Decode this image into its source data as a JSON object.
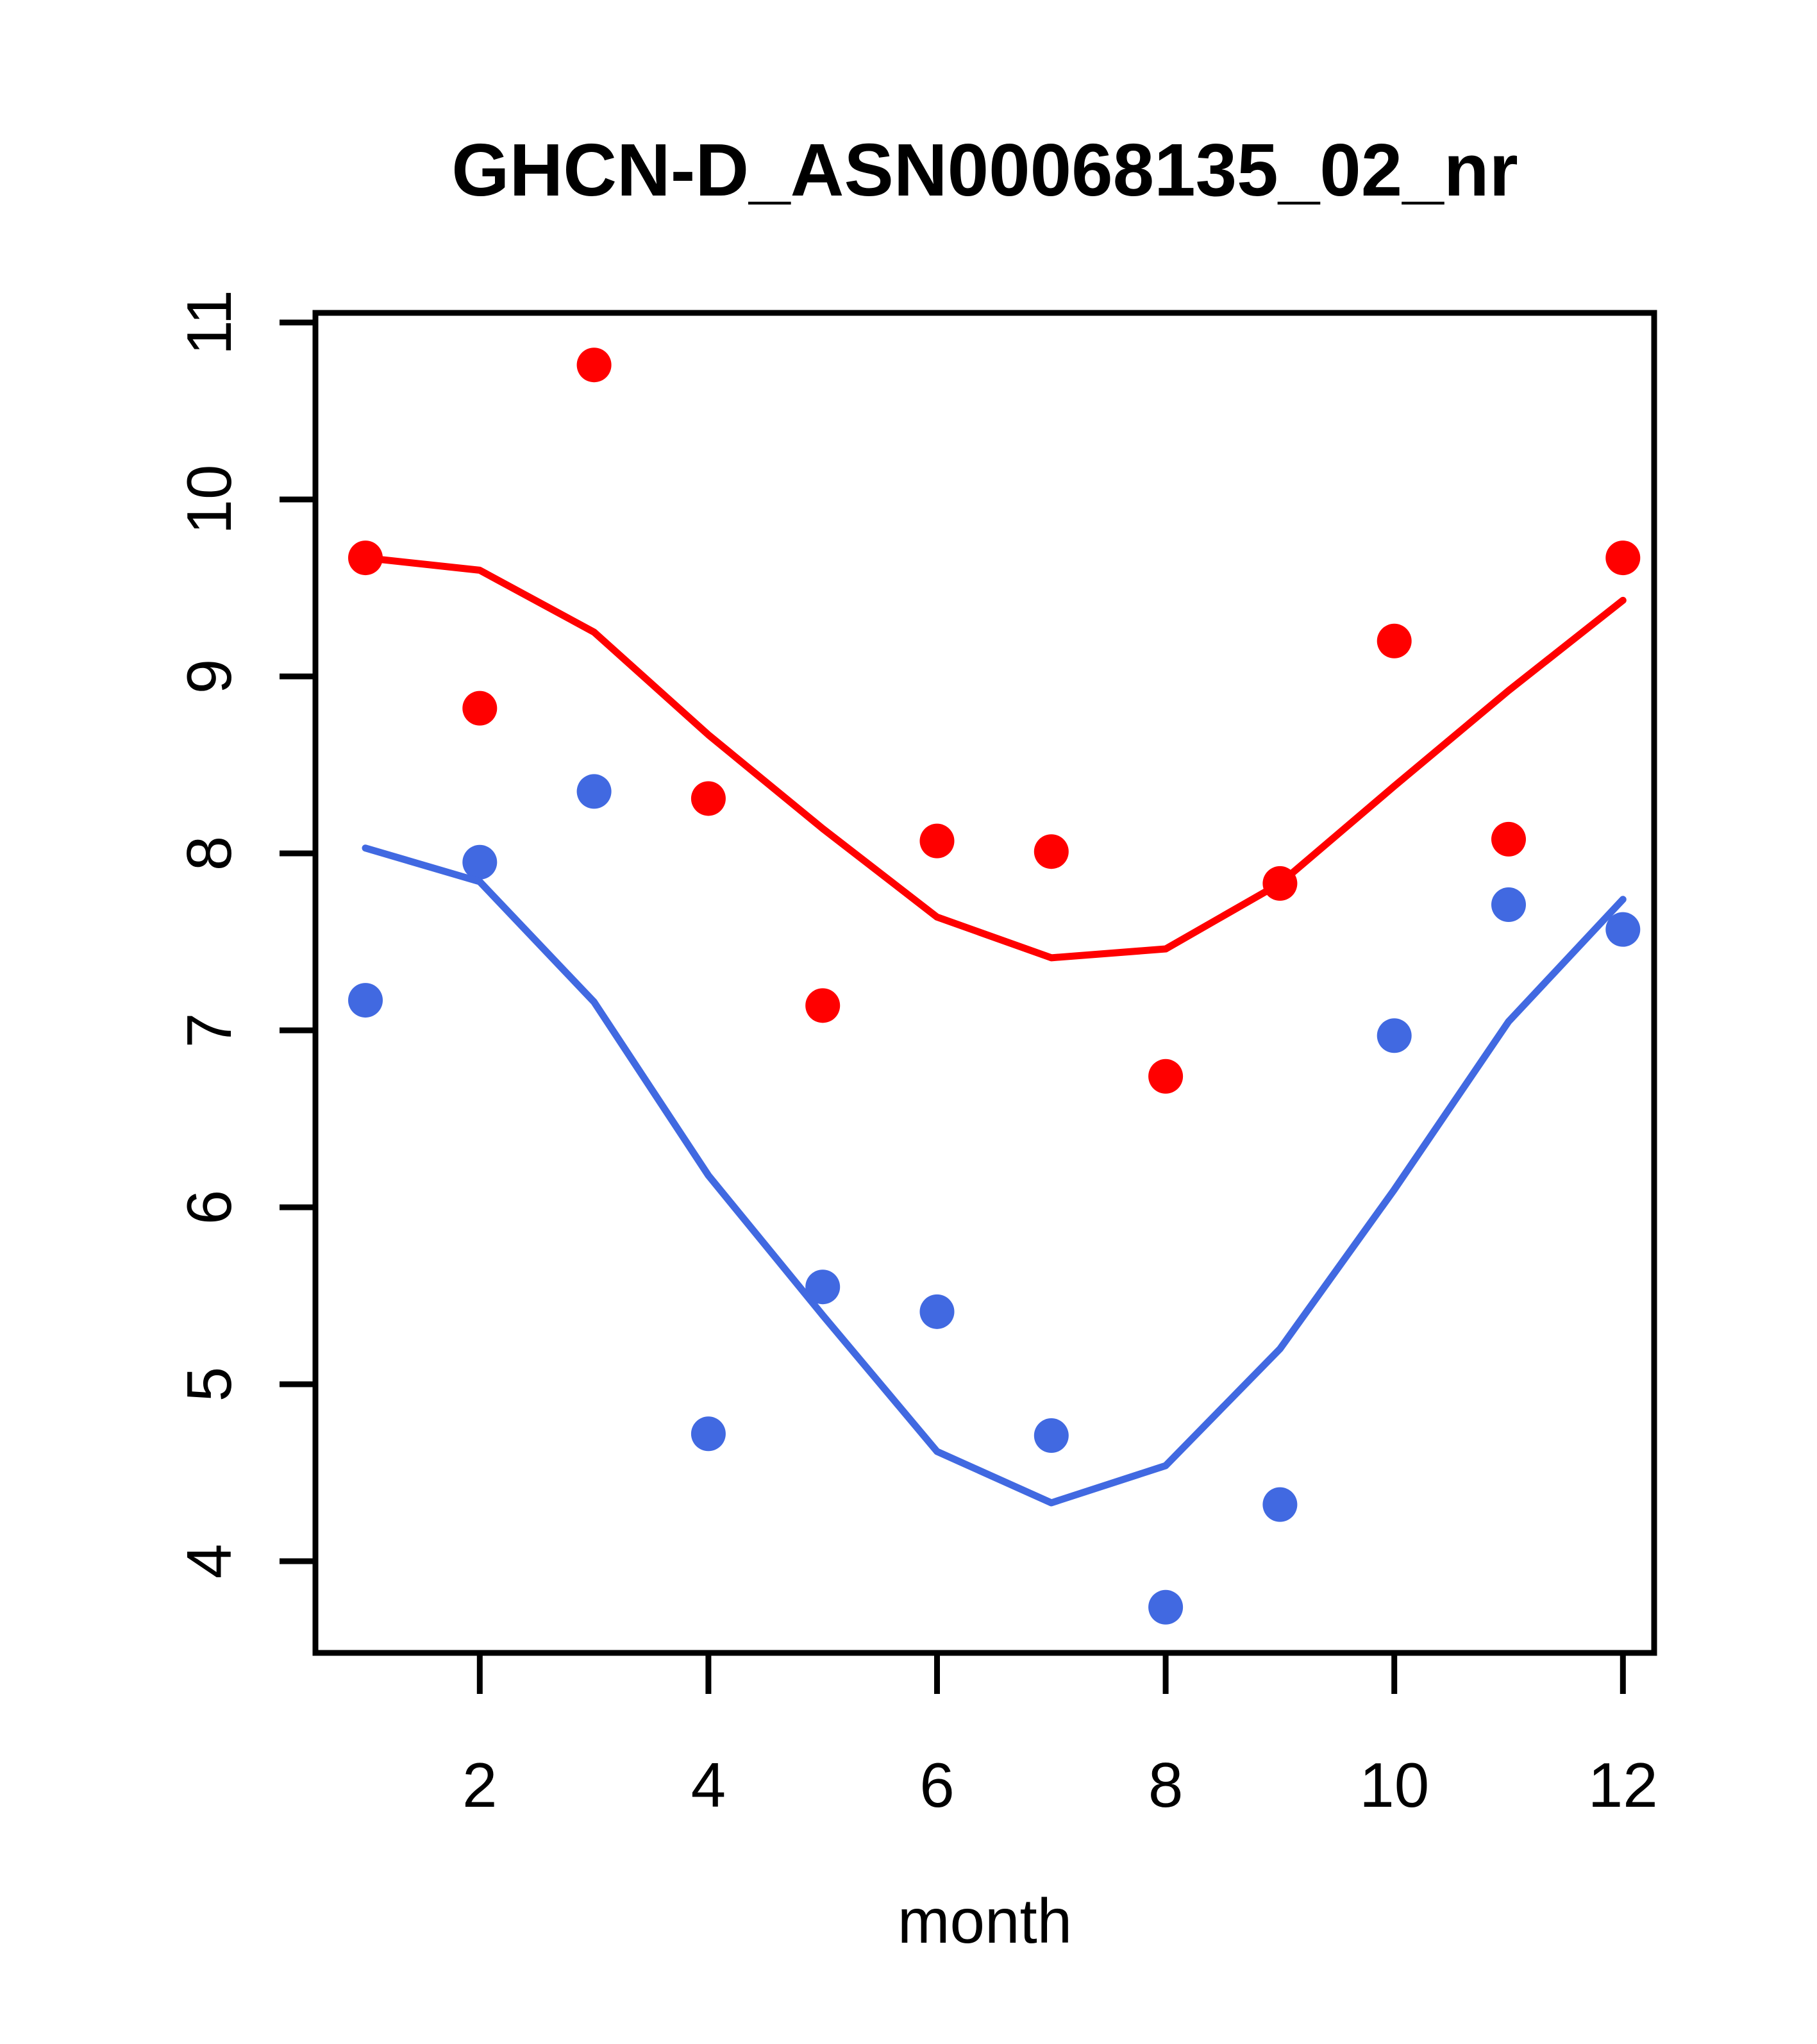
{
  "chart_data": {
    "type": "scatter",
    "title": "GHCN-D_ASN00068135_02_nr",
    "xlabel": "month",
    "ylabel": "",
    "x": [
      1,
      2,
      3,
      4,
      5,
      6,
      7,
      8,
      9,
      10,
      11,
      12
    ],
    "x_ticks": [
      2,
      4,
      6,
      8,
      10,
      12
    ],
    "y_ticks": [
      4,
      5,
      6,
      7,
      8,
      9,
      10,
      11
    ],
    "xlim": [
      0.56,
      12.27
    ],
    "ylim": [
      3.49,
      11.05
    ],
    "grid": false,
    "legend": "none",
    "colors": {
      "red": "#FF0000",
      "blue": "#4169E1"
    },
    "series": [
      {
        "name": "red-points",
        "kind": "scatter",
        "color": "red",
        "values": [
          9.67,
          8.82,
          10.76,
          8.31,
          7.14,
          8.07,
          8.01,
          6.74,
          7.83,
          9.2,
          8.08,
          9.67
        ]
      },
      {
        "name": "blue-points",
        "kind": "scatter",
        "color": "blue",
        "values": [
          7.17,
          7.95,
          8.35,
          4.72,
          5.55,
          5.41,
          4.71,
          3.74,
          4.32,
          6.97,
          7.71,
          7.57
        ]
      },
      {
        "name": "red-smooth-line",
        "kind": "line",
        "color": "red",
        "values": [
          9.67,
          9.6,
          9.25,
          8.67,
          8.14,
          7.64,
          7.41,
          7.46,
          7.83,
          8.38,
          8.92,
          9.43
        ]
      },
      {
        "name": "blue-smooth-line",
        "kind": "line",
        "color": "blue",
        "values": [
          8.03,
          7.84,
          7.16,
          6.18,
          5.39,
          4.62,
          4.33,
          4.54,
          5.2,
          6.1,
          7.05,
          7.74
        ]
      }
    ]
  }
}
